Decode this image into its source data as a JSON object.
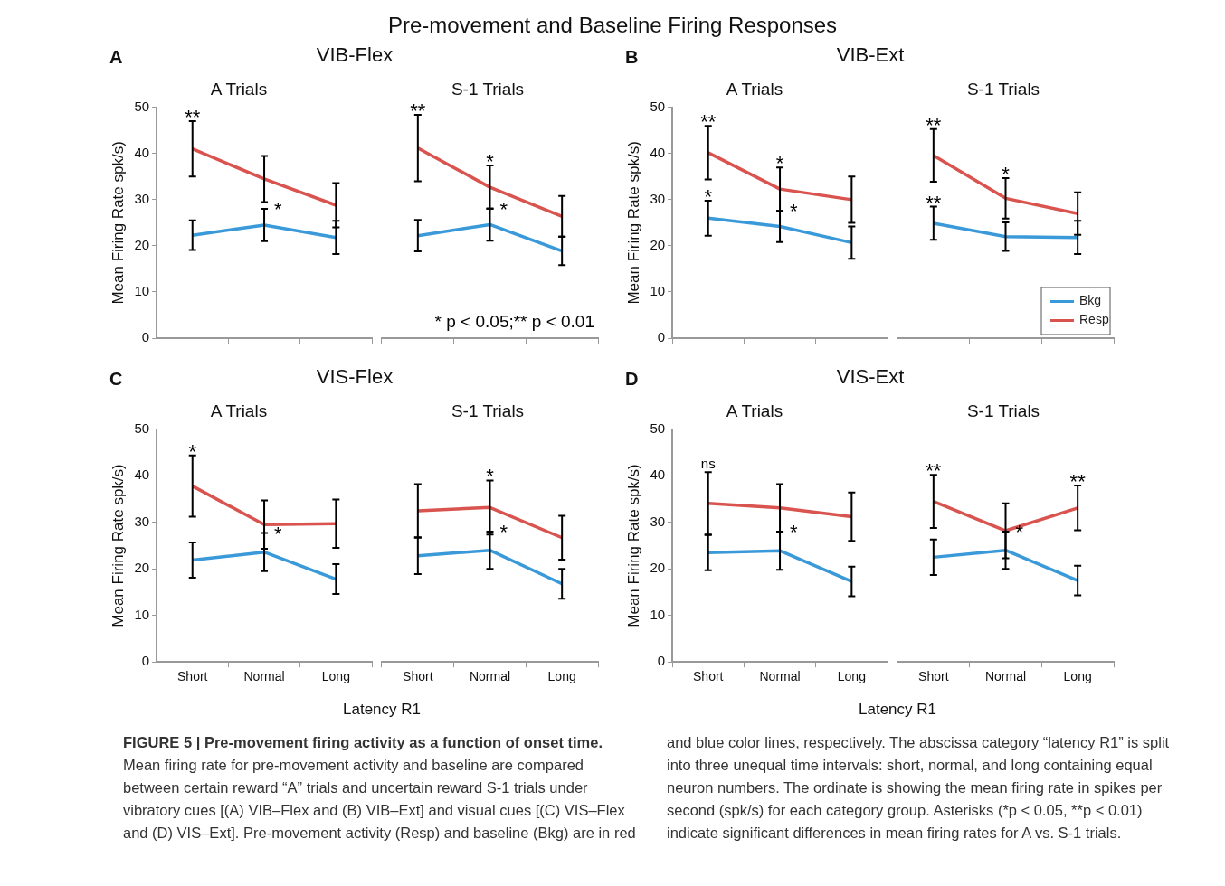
{
  "chart_data": [
    {
      "type": "line",
      "title": "A Trials",
      "subtitle": "VIB-Flex",
      "ylabel": "Mean Firing Rate spk/s)",
      "categories": [
        "Short",
        "Normal",
        "Long"
      ],
      "ylim": [
        0,
        50
      ],
      "yticks": [
        0,
        10,
        20,
        30,
        40,
        50
      ],
      "grid": false,
      "tick_labels": "y",
      "series": [
        {
          "color": "#3a9ad9",
          "values": [
            22.3,
            24.5,
            21.8
          ],
          "errors": [
            3.2,
            3.5,
            3.6
          ]
        },
        {
          "color": "#d9534f",
          "values": [
            41,
            34.5,
            28.8
          ],
          "errors": [
            6,
            5,
            4.8
          ]
        }
      ],
      "annotations": [
        "A",
        "Pre-movement and Baseline Firing Responses",
        "FIGURE 5 | Pre-movement firing activity as a function of onset time.",
        "Mean firing rate for pre-movement activity and baseline are compared between certain reward “A” trials and uncertain reward S-1 trials under vibratory cues [(A) VIB–Flex and (B) VIB–Ext] and visual cues [(C) VIS–Flex and (D) VIS–Ext]. Pre-movement activity (Resp) and baseline (Bkg) are in red and blue color lines, respectively. The abscissa category “latency R1” is split into three unequal time intervals: short, normal, and long containing equal neuron numbers. The ordinate is showing the mean firing rate in spikes per second (spk/s) for each category group. Asterisks (*p < 0.05, **p < 0.01) indicate significant differences in mean firing rates for A vs. S-1 trials.",
        {
          "text": "**",
          "x": "Short",
          "y": 41
        },
        {
          "text": "*",
          "x": "Normal",
          "y": 24.5
        }
      ]
    },
    {
      "type": "line",
      "title": "S-1 Trials",
      "categories": [
        "Short",
        "Normal",
        "Long"
      ],
      "ylim": [
        0,
        50
      ],
      "yticks": [
        0,
        10,
        20,
        30,
        40,
        50
      ],
      "grid": false,
      "tick_labels": false,
      "series": [
        {
          "color": "#3a9ad9",
          "values": [
            22.2,
            24.6,
            18.9
          ],
          "errors": [
            3.4,
            3.5,
            3.1
          ]
        },
        {
          "color": "#d9534f",
          "values": [
            41.2,
            32.7,
            26.4
          ],
          "errors": [
            7.2,
            4.7,
            4.4
          ]
        }
      ],
      "annotations": [
        "* p < 0.05;** p < 0.01",
        {
          "text": "**",
          "x": "Short",
          "y": 41.2
        },
        {
          "text": "*",
          "x": "Normal",
          "y": 32.7
        },
        {
          "text": "*",
          "x": "Normal",
          "y": 24.6
        }
      ]
    },
    {
      "type": "line",
      "title": "A Trials",
      "subtitle": "VIB-Ext",
      "ylabel": "Mean Firing Rate spk/s)",
      "categories": [
        "Short",
        "Normal",
        "Long"
      ],
      "ylim": [
        0,
        50
      ],
      "yticks": [
        0,
        10,
        20,
        30,
        40,
        50
      ],
      "grid": false,
      "tick_labels": "y",
      "series": [
        {
          "color": "#3a9ad9",
          "values": [
            26,
            24.2,
            20.7
          ],
          "errors": [
            3.8,
            3.4,
            3.5
          ]
        },
        {
          "color": "#d9534f",
          "values": [
            40.2,
            32.3,
            30
          ],
          "errors": [
            5.8,
            4.7,
            5
          ]
        }
      ],
      "annotations": [
        "B",
        {
          "text": "**",
          "x": "Short",
          "y": 40.2
        },
        {
          "text": "*",
          "x": "Short",
          "y": 26
        },
        {
          "text": "*",
          "x": "Normal",
          "y": 32.3
        },
        {
          "text": "*",
          "x": "Normal",
          "y": 24.2
        }
      ]
    },
    {
      "type": "line",
      "title": "S-1 Trials",
      "categories": [
        "Short",
        "Normal",
        "Long"
      ],
      "ylim": [
        0,
        50
      ],
      "yticks": [
        0,
        10,
        20,
        30,
        40,
        50
      ],
      "grid": false,
      "tick_labels": false,
      "legend": "bottom right",
      "series": [
        {
          "name": "Bkg",
          "color": "#3a9ad9",
          "values": [
            24.9,
            22,
            21.8
          ],
          "errors": [
            3.6,
            3.1,
            3.6
          ]
        },
        {
          "name": "Resp",
          "color": "#d9534f",
          "values": [
            39.6,
            30.3,
            27
          ],
          "errors": [
            5.7,
            4.4,
            4.6
          ]
        }
      ],
      "annotations": [
        {
          "text": "**",
          "x": "Short",
          "y": 39.6
        },
        {
          "text": "**",
          "x": "Short",
          "y": 24.9
        },
        {
          "text": "*",
          "x": "Normal",
          "y": 30.3
        }
      ]
    },
    {
      "type": "line",
      "title": "A Trials",
      "subtitle": "VIS-Flex",
      "ylabel": "Mean Firing Rate spk/s)",
      "xlabel": "Latency R1",
      "categories": [
        "Short",
        "Normal",
        "Long"
      ],
      "ylim": [
        0,
        50
      ],
      "yticks": [
        0,
        10,
        20,
        30,
        40,
        50
      ],
      "grid": false,
      "series": [
        {
          "color": "#3a9ad9",
          "values": [
            21.9,
            23.6,
            17.8
          ],
          "errors": [
            3.8,
            4.1,
            3.2
          ]
        },
        {
          "color": "#d9534f",
          "values": [
            37.8,
            29.5,
            29.7
          ],
          "errors": [
            6.6,
            5.2,
            5.2
          ]
        }
      ],
      "annotations": [
        "C",
        {
          "text": "*",
          "x": "Short",
          "y": 37.8
        },
        {
          "text": "*",
          "x": "Normal",
          "y": 23.6
        }
      ]
    },
    {
      "type": "line",
      "title": "S-1 Trials",
      "categories": [
        "Short",
        "Normal",
        "Long"
      ],
      "ylim": [
        0,
        50
      ],
      "yticks": [
        0,
        10,
        20,
        30,
        40,
        50
      ],
      "grid": false,
      "tick_labels": "x",
      "series": [
        {
          "color": "#3a9ad9",
          "values": [
            22.8,
            24,
            16.8
          ],
          "errors": [
            3.9,
            4,
            3.2
          ]
        },
        {
          "color": "#d9534f",
          "values": [
            32.5,
            33.2,
            26.7
          ],
          "errors": [
            5.7,
            5.8,
            4.7
          ]
        }
      ],
      "annotations": [
        {
          "text": "*",
          "x": "Normal",
          "y": 39
        },
        {
          "text": "*",
          "x": "Normal",
          "y": 24
        }
      ]
    },
    {
      "type": "line",
      "title": "A Trials",
      "subtitle": "VIS-Ext",
      "ylabel": "Mean Firing Rate spk/s)",
      "xlabel": "Latency R1",
      "categories": [
        "Short",
        "Normal",
        "Long"
      ],
      "ylim": [
        0,
        50
      ],
      "yticks": [
        0,
        10,
        20,
        30,
        40,
        50
      ],
      "grid": false,
      "series": [
        {
          "color": "#3a9ad9",
          "values": [
            23.5,
            23.9,
            17.3
          ],
          "errors": [
            3.8,
            4.1,
            3.2
          ]
        },
        {
          "color": "#d9534f",
          "values": [
            34.1,
            33.1,
            31.2
          ],
          "errors": [
            6.7,
            5.1,
            5.2
          ]
        }
      ],
      "annotations": [
        "D",
        {
          "text": "ns",
          "x": "Short",
          "y": 34.1
        },
        {
          "text": "*",
          "x": "Normal",
          "y": 23.9
        }
      ]
    },
    {
      "type": "line",
      "title": "S-1 Trials",
      "categories": [
        "Short",
        "Normal",
        "Long"
      ],
      "ylim": [
        0,
        50
      ],
      "yticks": [
        0,
        10,
        20,
        30,
        40,
        50
      ],
      "grid": false,
      "tick_labels": "x",
      "series": [
        {
          "color": "#3a9ad9",
          "values": [
            22.5,
            24,
            17.5
          ],
          "errors": [
            3.8,
            4,
            3.2
          ]
        },
        {
          "color": "#d9534f",
          "values": [
            34.5,
            28.2,
            33.1
          ],
          "errors": [
            5.7,
            5.9,
            4.8
          ]
        }
      ],
      "annotations": [
        {
          "text": "**",
          "x": "Short",
          "y": 34.5
        },
        {
          "text": "*",
          "x": "Normal",
          "y": 24
        },
        {
          "text": "**",
          "x": "Long",
          "y": 33.1
        }
      ]
    }
  ]
}
